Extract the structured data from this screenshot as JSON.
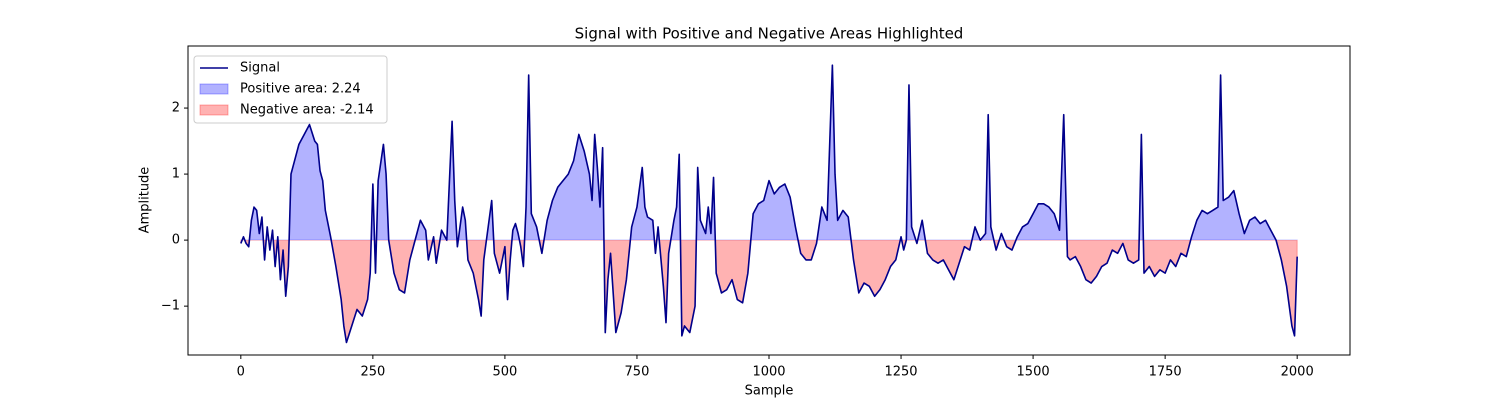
{
  "chart_data": {
    "type": "line",
    "title": "Signal with Positive and Negative Areas Highlighted",
    "xlabel": "Sample",
    "ylabel": "Amplitude",
    "x": [
      0,
      5,
      10,
      15,
      20,
      25,
      30,
      35,
      40,
      45,
      50,
      55,
      60,
      65,
      70,
      75,
      80,
      85,
      90,
      95,
      100,
      110,
      120,
      130,
      140,
      145,
      150,
      155,
      160,
      170,
      180,
      190,
      195,
      200,
      210,
      220,
      230,
      240,
      245,
      250,
      255,
      260,
      270,
      275,
      280,
      290,
      300,
      310,
      320,
      330,
      340,
      350,
      355,
      365,
      370,
      380,
      390,
      400,
      405,
      410,
      415,
      420,
      425,
      430,
      440,
      450,
      455,
      460,
      470,
      475,
      480,
      490,
      500,
      505,
      510,
      515,
      520,
      525,
      530,
      535,
      540,
      545,
      550,
      560,
      570,
      580,
      590,
      600,
      620,
      630,
      640,
      650,
      660,
      665,
      670,
      675,
      680,
      685,
      690,
      695,
      700,
      710,
      720,
      730,
      740,
      750,
      760,
      765,
      770,
      780,
      785,
      790,
      800,
      805,
      810,
      820,
      825,
      830,
      835,
      840,
      850,
      860,
      865,
      870,
      880,
      885,
      890,
      895,
      900,
      910,
      920,
      930,
      940,
      950,
      960,
      970,
      980,
      990,
      1000,
      1010,
      1020,
      1030,
      1040,
      1050,
      1060,
      1070,
      1080,
      1090,
      1100,
      1110,
      1120,
      1125,
      1130,
      1140,
      1150,
      1160,
      1170,
      1180,
      1190,
      1200,
      1210,
      1220,
      1230,
      1240,
      1250,
      1255,
      1260,
      1265,
      1270,
      1280,
      1290,
      1300,
      1310,
      1320,
      1330,
      1340,
      1350,
      1360,
      1370,
      1380,
      1390,
      1400,
      1410,
      1415,
      1420,
      1430,
      1440,
      1450,
      1460,
      1470,
      1480,
      1490,
      1500,
      1510,
      1520,
      1530,
      1540,
      1550,
      1558,
      1565,
      1570,
      1580,
      1590,
      1600,
      1610,
      1620,
      1630,
      1640,
      1650,
      1660,
      1670,
      1680,
      1690,
      1700,
      1705,
      1710,
      1720,
      1730,
      1740,
      1750,
      1760,
      1770,
      1780,
      1790,
      1800,
      1810,
      1820,
      1830,
      1840,
      1850,
      1855,
      1860,
      1870,
      1880,
      1890,
      1900,
      1910,
      1920,
      1930,
      1940,
      1950,
      1960,
      1970,
      1980,
      1990,
      1995,
      2000
    ],
    "series": [
      {
        "name": "Signal",
        "color": "#00008b",
        "values": [
          -0.05,
          0.05,
          -0.05,
          -0.1,
          0.3,
          0.5,
          0.45,
          0.1,
          0.35,
          -0.3,
          0.2,
          -0.15,
          0.15,
          -0.4,
          0.05,
          -0.6,
          -0.15,
          -0.85,
          -0.4,
          1.0,
          1.15,
          1.45,
          1.6,
          1.75,
          1.5,
          1.45,
          1.05,
          0.9,
          0.45,
          0.05,
          -0.4,
          -0.9,
          -1.3,
          -1.55,
          -1.3,
          -1.05,
          -1.15,
          -0.9,
          -0.5,
          0.85,
          -0.5,
          0.9,
          1.45,
          1.0,
          0.0,
          -0.5,
          -0.75,
          -0.8,
          -0.3,
          0.0,
          0.3,
          0.15,
          -0.3,
          0.05,
          -0.35,
          0.15,
          0.0,
          1.8,
          0.6,
          -0.1,
          0.2,
          0.5,
          0.3,
          -0.3,
          -0.5,
          -0.9,
          -1.15,
          -0.3,
          0.3,
          0.6,
          -0.2,
          -0.5,
          -0.1,
          -0.9,
          -0.3,
          0.15,
          0.25,
          0.1,
          -0.1,
          -0.4,
          0.5,
          2.5,
          0.4,
          0.2,
          -0.2,
          0.3,
          0.6,
          0.8,
          1.0,
          1.2,
          1.6,
          1.35,
          1.0,
          0.6,
          1.6,
          1.1,
          0.5,
          1.4,
          -1.4,
          -0.6,
          -0.2,
          -1.4,
          -1.1,
          -0.6,
          0.2,
          0.5,
          1.1,
          0.5,
          0.35,
          0.3,
          -0.2,
          0.2,
          -0.7,
          -1.25,
          -0.2,
          0.3,
          0.5,
          1.3,
          -1.45,
          -1.3,
          -1.4,
          -1.0,
          1.1,
          0.3,
          0.1,
          0.5,
          0.1,
          0.95,
          -0.5,
          -0.8,
          -0.75,
          -0.6,
          -0.9,
          -0.95,
          -0.5,
          0.4,
          0.55,
          0.6,
          0.9,
          0.7,
          0.8,
          0.85,
          0.65,
          0.2,
          -0.2,
          -0.3,
          -0.3,
          -0.05,
          0.5,
          0.3,
          2.65,
          1.0,
          0.3,
          0.45,
          0.35,
          -0.3,
          -0.8,
          -0.65,
          -0.7,
          -0.85,
          -0.75,
          -0.6,
          -0.4,
          -0.3,
          0.05,
          -0.15,
          0.0,
          2.35,
          0.2,
          -0.05,
          0.3,
          -0.2,
          -0.3,
          -0.35,
          -0.3,
          -0.45,
          -0.6,
          -0.35,
          -0.1,
          -0.15,
          0.2,
          0.0,
          0.1,
          1.9,
          0.2,
          -0.15,
          0.1,
          -0.1,
          -0.15,
          0.05,
          0.2,
          0.25,
          0.4,
          0.55,
          0.55,
          0.5,
          0.4,
          0.15,
          1.9,
          -0.25,
          -0.3,
          -0.25,
          -0.4,
          -0.6,
          -0.65,
          -0.55,
          -0.4,
          -0.35,
          -0.15,
          -0.2,
          -0.05,
          -0.3,
          -0.35,
          -0.3,
          1.6,
          -0.5,
          -0.4,
          -0.55,
          -0.45,
          -0.5,
          -0.3,
          -0.4,
          -0.2,
          -0.25,
          0.05,
          0.3,
          0.45,
          0.4,
          0.45,
          0.5,
          2.5,
          0.6,
          0.65,
          0.75,
          0.4,
          0.1,
          0.3,
          0.35,
          0.25,
          0.3,
          0.15,
          0.0,
          -0.3,
          -0.7,
          -1.3,
          -1.45,
          -0.25
        ]
      }
    ],
    "fills": [
      {
        "name": "Positive area: 2.24",
        "color": "#0000ff",
        "side": "positive"
      },
      {
        "name": "Negative area: -2.14",
        "color": "#ff0000",
        "side": "negative"
      }
    ],
    "xlim": [
      -100,
      2100
    ],
    "ylim": [
      -1.74,
      2.94
    ],
    "xticks": [
      0,
      250,
      500,
      750,
      1000,
      1250,
      1500,
      1750,
      2000
    ],
    "yticks": [
      {
        "value": -1,
        "label": "−1"
      },
      0,
      1,
      2
    ],
    "legend": "upper left"
  }
}
